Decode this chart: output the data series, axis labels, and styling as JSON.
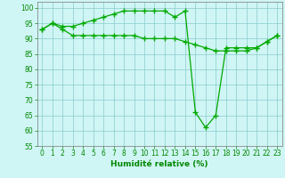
{
  "line1_x": [
    0,
    1,
    2,
    3,
    4,
    5,
    6,
    7,
    8,
    9,
    10,
    11,
    12,
    13,
    14,
    15,
    16,
    17,
    18,
    19,
    20,
    21,
    22,
    23
  ],
  "line1_y": [
    93,
    95,
    93,
    91,
    91,
    91,
    91,
    91,
    91,
    91,
    90,
    90,
    90,
    90,
    89,
    88,
    87,
    86,
    86,
    86,
    86,
    87,
    89,
    91
  ],
  "line2_x": [
    0,
    1,
    2,
    3,
    4,
    5,
    6,
    7,
    8,
    9,
    10,
    11,
    12,
    13,
    14,
    15,
    16,
    17,
    18,
    19,
    20,
    21,
    22,
    23
  ],
  "line2_y": [
    93,
    95,
    94,
    94,
    95,
    96,
    97,
    98,
    99,
    99,
    99,
    99,
    99,
    97,
    99,
    66,
    61,
    65,
    87,
    87,
    87,
    87,
    89,
    91
  ],
  "line_color": "#00aa00",
  "marker": "+",
  "markersize": 4,
  "linewidth": 0.9,
  "markeredgewidth": 1.0,
  "bg_color": "#d0f5f5",
  "grid_color": "#88cccc",
  "xlabel": "Humidité relative (%)",
  "xlabel_color": "#008800",
  "xlabel_fontsize": 6.5,
  "tick_color": "#008800",
  "tick_fontsize": 5.5,
  "ylim": [
    55,
    102
  ],
  "xlim": [
    -0.5,
    23.5
  ],
  "yticks": [
    55,
    60,
    65,
    70,
    75,
    80,
    85,
    90,
    95,
    100
  ],
  "xticks": [
    0,
    1,
    2,
    3,
    4,
    5,
    6,
    7,
    8,
    9,
    10,
    11,
    12,
    13,
    14,
    15,
    16,
    17,
    18,
    19,
    20,
    21,
    22,
    23
  ]
}
